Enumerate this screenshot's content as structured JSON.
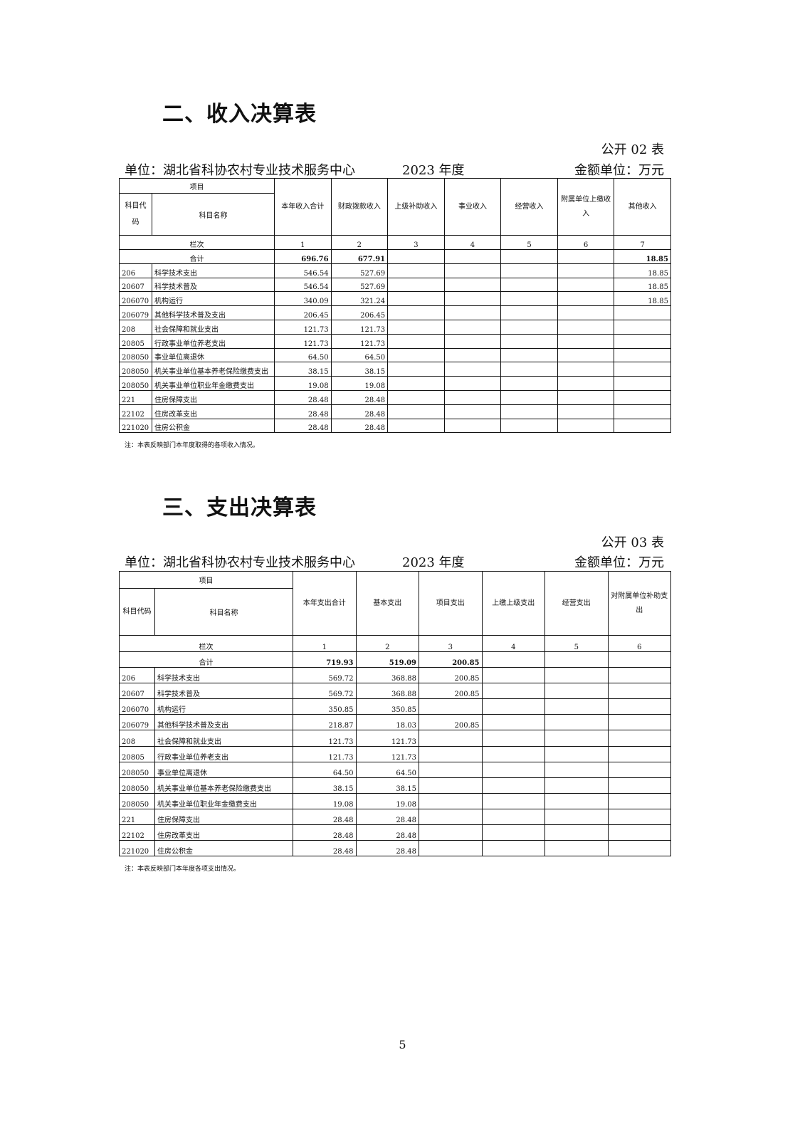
{
  "income": {
    "title": "二、收入决算表",
    "form_no": "公开 02 表",
    "unit": "单位：湖北省科协农村专业技术服务中心",
    "year": "2023 年度",
    "money_unit": "金额单位：万元",
    "header_group": "项目",
    "code_header": "科目代码",
    "name_header": "科目名称",
    "columns": [
      "本年收入合计",
      "财政拨款收入",
      "上级补助收入",
      "事业收入",
      "经营收入",
      "附属单位上缴收入",
      "其他收入"
    ],
    "seq_label": "栏次",
    "seq": [
      "1",
      "2",
      "3",
      "4",
      "5",
      "6",
      "7"
    ],
    "total_label": "合计",
    "total": [
      "696.76",
      "677.91",
      "",
      "",
      "",
      "",
      "18.85"
    ],
    "rows": [
      {
        "code": "206",
        "name": "科学技术支出",
        "values": [
          "546.54",
          "527.69",
          "",
          "",
          "",
          "",
          "18.85"
        ]
      },
      {
        "code": "20607",
        "name": "科学技术普及",
        "values": [
          "546.54",
          "527.69",
          "",
          "",
          "",
          "",
          "18.85"
        ]
      },
      {
        "code": "206070",
        "name": "机构运行",
        "values": [
          "340.09",
          "321.24",
          "",
          "",
          "",
          "",
          "18.85"
        ]
      },
      {
        "code": "206079",
        "name": "其他科学技术普及支出",
        "values": [
          "206.45",
          "206.45",
          "",
          "",
          "",
          "",
          ""
        ]
      },
      {
        "code": "208",
        "name": "社会保障和就业支出",
        "values": [
          "121.73",
          "121.73",
          "",
          "",
          "",
          "",
          ""
        ]
      },
      {
        "code": "20805",
        "name": "行政事业单位养老支出",
        "values": [
          "121.73",
          "121.73",
          "",
          "",
          "",
          "",
          ""
        ]
      },
      {
        "code": "208050",
        "name": "事业单位离退休",
        "values": [
          "64.50",
          "64.50",
          "",
          "",
          "",
          "",
          ""
        ]
      },
      {
        "code": "208050",
        "name": "机关事业单位基本养老保险缴费支出",
        "values": [
          "38.15",
          "38.15",
          "",
          "",
          "",
          "",
          ""
        ]
      },
      {
        "code": "208050",
        "name": "机关事业单位职业年金缴费支出",
        "values": [
          "19.08",
          "19.08",
          "",
          "",
          "",
          "",
          ""
        ]
      },
      {
        "code": "221",
        "name": "住房保障支出",
        "values": [
          "28.48",
          "28.48",
          "",
          "",
          "",
          "",
          ""
        ]
      },
      {
        "code": "22102",
        "name": "住房改革支出",
        "values": [
          "28.48",
          "28.48",
          "",
          "",
          "",
          "",
          ""
        ]
      },
      {
        "code": "221020",
        "name": "住房公积金",
        "values": [
          "28.48",
          "28.48",
          "",
          "",
          "",
          "",
          ""
        ]
      }
    ],
    "note": "注：本表反映部门本年度取得的各项收入情况。"
  },
  "expense": {
    "title": "三、支出决算表",
    "form_no": "公开 03 表",
    "unit": "单位：湖北省科协农村专业技术服务中心",
    "year": "2023 年度",
    "money_unit": "金额单位：万元",
    "header_group": "项目",
    "code_header": "科目代码",
    "name_header": "科目名称",
    "columns": [
      "本年支出合计",
      "基本支出",
      "项目支出",
      "上缴上级支出",
      "经营支出",
      "对附属单位补助支出"
    ],
    "seq_label": "栏次",
    "seq": [
      "1",
      "2",
      "3",
      "4",
      "5",
      "6"
    ],
    "total_label": "合计",
    "total": [
      "719.93",
      "519.09",
      "200.85",
      "",
      "",
      ""
    ],
    "rows": [
      {
        "code": "206",
        "name": "科学技术支出",
        "values": [
          "569.72",
          "368.88",
          "200.85",
          "",
          "",
          ""
        ]
      },
      {
        "code": "20607",
        "name": "科学技术普及",
        "values": [
          "569.72",
          "368.88",
          "200.85",
          "",
          "",
          ""
        ]
      },
      {
        "code": "206070",
        "name": "机构运行",
        "values": [
          "350.85",
          "350.85",
          "",
          "",
          "",
          ""
        ]
      },
      {
        "code": "206079",
        "name": "其他科学技术普及支出",
        "values": [
          "218.87",
          "18.03",
          "200.85",
          "",
          "",
          ""
        ]
      },
      {
        "code": "208",
        "name": "社会保障和就业支出",
        "values": [
          "121.73",
          "121.73",
          "",
          "",
          "",
          ""
        ]
      },
      {
        "code": "20805",
        "name": "行政事业单位养老支出",
        "values": [
          "121.73",
          "121.73",
          "",
          "",
          "",
          ""
        ]
      },
      {
        "code": "208050",
        "name": "事业单位离退休",
        "values": [
          "64.50",
          "64.50",
          "",
          "",
          "",
          ""
        ]
      },
      {
        "code": "208050",
        "name": "机关事业单位基本养老保险缴费支出",
        "values": [
          "38.15",
          "38.15",
          "",
          "",
          "",
          ""
        ]
      },
      {
        "code": "208050",
        "name": "机关事业单位职业年金缴费支出",
        "values": [
          "19.08",
          "19.08",
          "",
          "",
          "",
          ""
        ]
      },
      {
        "code": "221",
        "name": "住房保障支出",
        "values": [
          "28.48",
          "28.48",
          "",
          "",
          "",
          ""
        ]
      },
      {
        "code": "22102",
        "name": "住房改革支出",
        "values": [
          "28.48",
          "28.48",
          "",
          "",
          "",
          ""
        ]
      },
      {
        "code": "221020",
        "name": "住房公积金",
        "values": [
          "28.48",
          "28.48",
          "",
          "",
          "",
          ""
        ]
      }
    ],
    "note": "注：本表反映部门本年度各项支出情况。"
  },
  "page_number": "5"
}
